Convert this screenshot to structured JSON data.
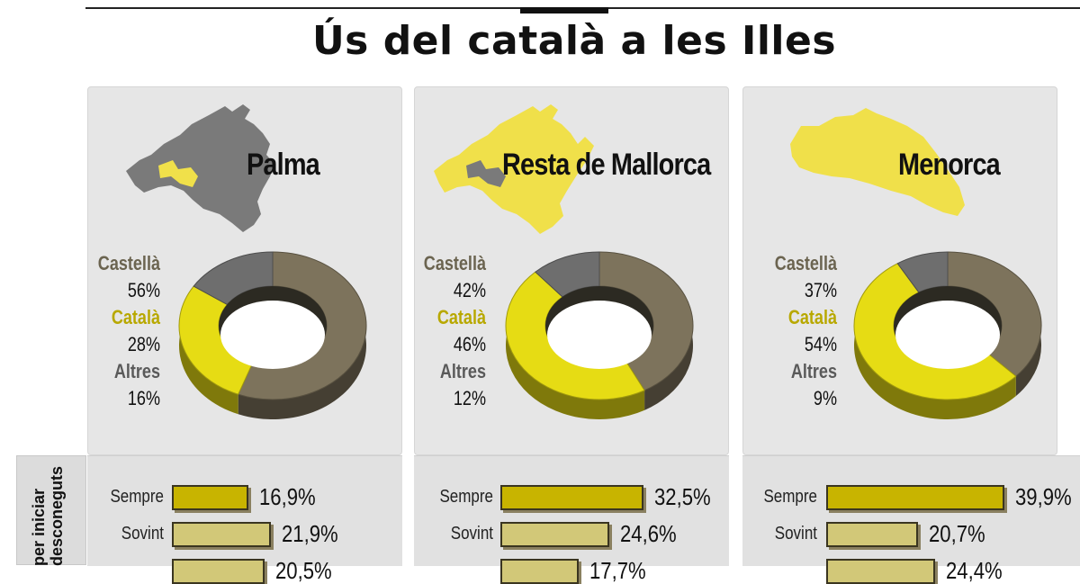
{
  "title": "Ús del català a les Illes",
  "side_label": "per iniciar desconeguts",
  "colors": {
    "castella": "#7d735c",
    "catala": "#e6dc14",
    "altres": "#6e6e6e",
    "bar_fill": "#c8b400",
    "bar_fill_light": "#d2c878",
    "map_gray": "#7a7a7a",
    "map_yellow": "#f0e04a"
  },
  "legend_labels": {
    "castella": "Castellà",
    "catala": "Català",
    "altres": "Altres"
  },
  "regions": [
    {
      "name": "Palma",
      "legend": {
        "castella": "56%",
        "catala": "28%",
        "altres": "16%"
      },
      "bars": [
        {
          "label": "Sempre",
          "value": "16,9%"
        },
        {
          "label": "Sovint",
          "value": "21,9%"
        },
        {
          "label": "",
          "value": "20,5%"
        }
      ]
    },
    {
      "name": "Resta de Mallorca",
      "legend": {
        "castella": "42%",
        "catala": "46%",
        "altres": "12%"
      },
      "bars": [
        {
          "label": "Sempre",
          "value": "32,5%"
        },
        {
          "label": "Sovint",
          "value": "24,6%"
        },
        {
          "label": "",
          "value": "17,7%"
        }
      ]
    },
    {
      "name": "Menorca",
      "legend": {
        "castella": "37%",
        "catala": "54%",
        "altres": "9%"
      },
      "bars": [
        {
          "label": "Sempre",
          "value": "39,9%"
        },
        {
          "label": "Sovint",
          "value": "20,7%"
        },
        {
          "label": "",
          "value": "24,4%"
        }
      ]
    }
  ],
  "chart_data": [
    {
      "type": "pie",
      "title": "Palma",
      "categories": [
        "Castellà",
        "Català",
        "Altres"
      ],
      "values": [
        56,
        28,
        16
      ]
    },
    {
      "type": "pie",
      "title": "Resta de Mallorca",
      "categories": [
        "Castellà",
        "Català",
        "Altres"
      ],
      "values": [
        42,
        46,
        12
      ]
    },
    {
      "type": "pie",
      "title": "Menorca",
      "categories": [
        "Castellà",
        "Català",
        "Altres"
      ],
      "values": [
        37,
        54,
        9
      ]
    },
    {
      "type": "bar",
      "title": "Palma",
      "categories": [
        "Sempre",
        "Sovint",
        ""
      ],
      "values": [
        16.9,
        21.9,
        20.5
      ]
    },
    {
      "type": "bar",
      "title": "Resta de Mallorca",
      "categories": [
        "Sempre",
        "Sovint",
        ""
      ],
      "values": [
        32.5,
        24.6,
        17.7
      ]
    },
    {
      "type": "bar",
      "title": "Menorca",
      "categories": [
        "Sempre",
        "Sovint",
        ""
      ],
      "values": [
        39.9,
        20.7,
        24.4
      ]
    }
  ]
}
